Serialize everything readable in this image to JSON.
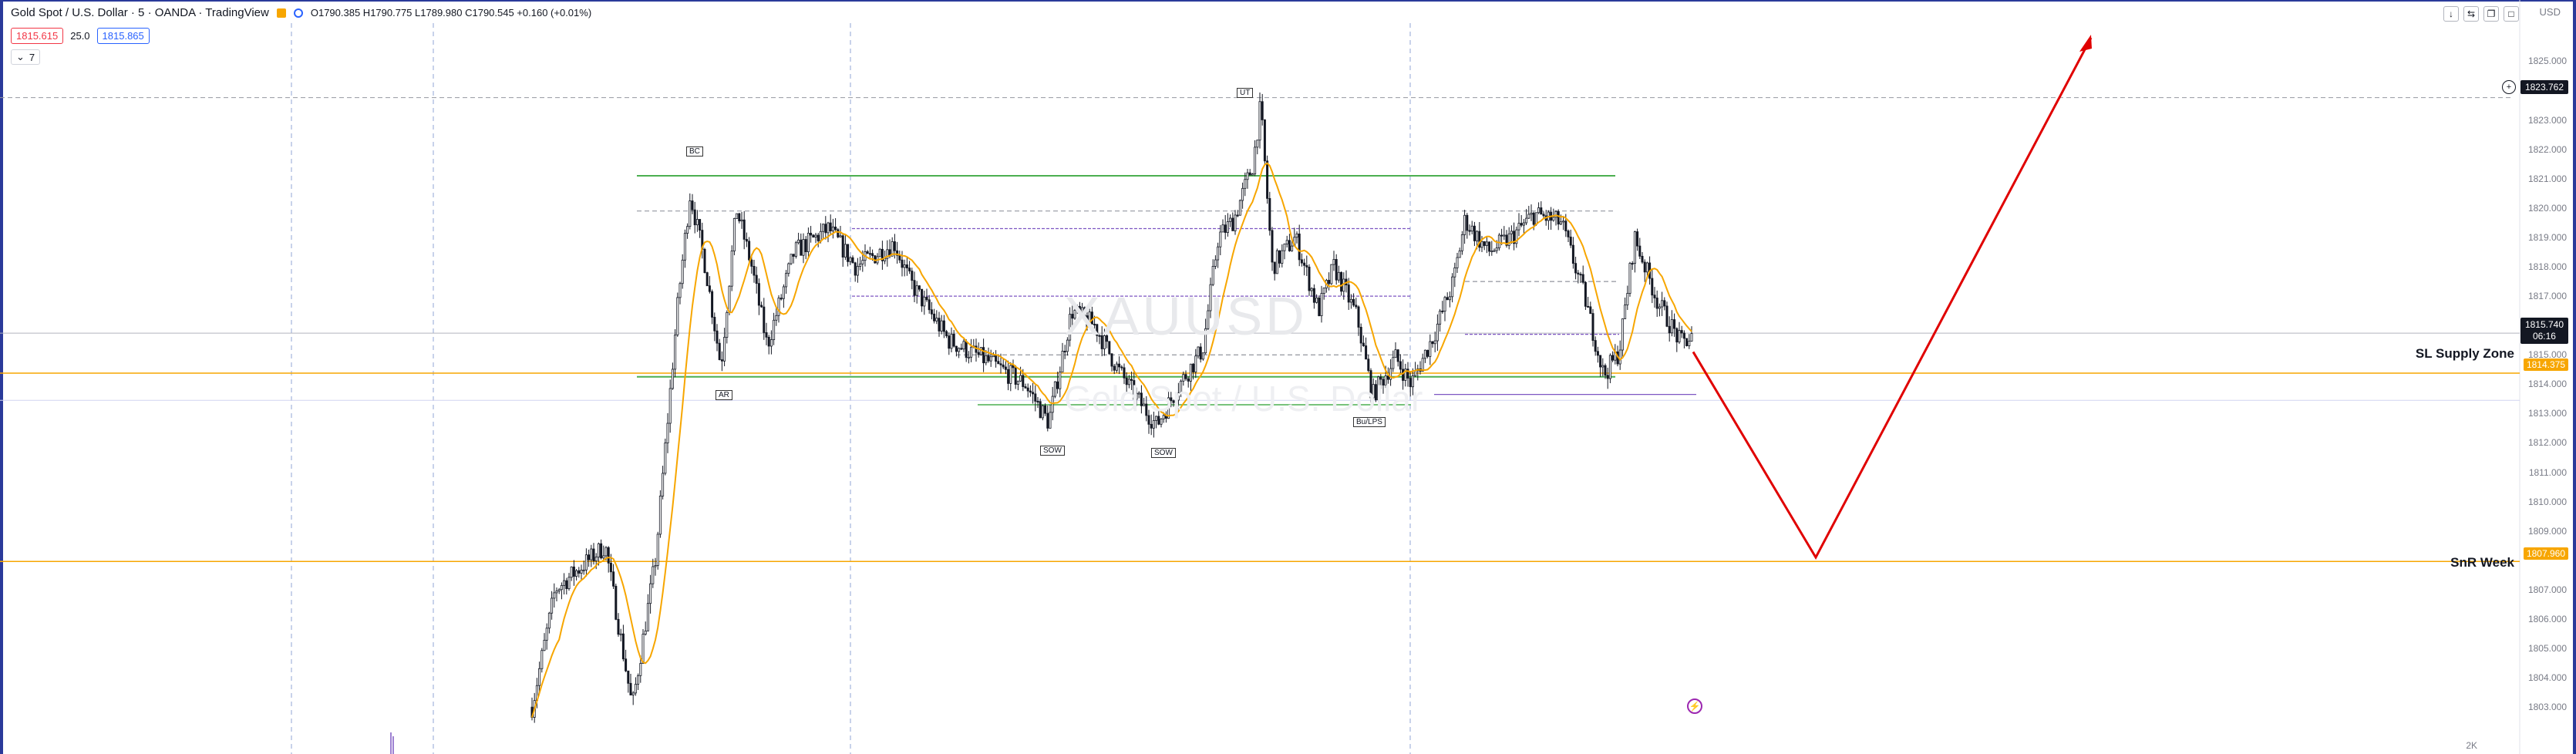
{
  "header": {
    "symbol_title": "Gold Spot / U.S. Dollar · 5 · OANDA · TradingView",
    "ohlc": "O1790.385 H1790.775 L1789.980 C1790.545 +0.160 (+0.01%)"
  },
  "quotes": {
    "sell": "1815.615",
    "spread": "25.0",
    "buy": "1815.865"
  },
  "indicators_toggle": "7",
  "window_controls": [
    "↓",
    "⇆",
    "❐",
    "□"
  ],
  "currency": "USD",
  "watermark": {
    "ticker": "XAUUSD",
    "name": "Gold Spot / U.S. Dollar"
  },
  "price_axis": {
    "labels": [
      "1825.000",
      "1823.000",
      "1822.000",
      "1821.000",
      "1820.000",
      "1819.000",
      "1818.000",
      "1817.000",
      "1815.000",
      "1814.000",
      "1813.000",
      "1812.000",
      "1811.000",
      "1810.000",
      "1809.000",
      "1807.000",
      "1806.000",
      "1805.000",
      "1804.000",
      "1803.000"
    ],
    "badges": {
      "crosshair": "1823.762",
      "current": "1815.740",
      "countdown": "06:16",
      "supply": "1814.375",
      "weekly": "1807.960"
    }
  },
  "zones": {
    "supply": "SL Supply Zone",
    "weekly": "SnR Week"
  },
  "annotations": [
    "BC",
    "AR",
    "UT",
    "SOW",
    "SOW",
    "Bu/LPS"
  ],
  "bottom_label": "2K",
  "chart_data": {
    "type": "candlestick",
    "ylim": [
      1802.4,
      1826.3
    ],
    "levels": [
      {
        "name": "SL Supply Zone",
        "price": 1814.375,
        "color": "#f7a600"
      },
      {
        "name": "SnR Week",
        "price": 1807.96,
        "color": "#f7a600"
      },
      {
        "name": "range-high",
        "price": 1821.1,
        "color": "#4caf50"
      },
      {
        "name": "range-low",
        "price": 1814.25,
        "color": "#4caf50"
      }
    ],
    "projection": [
      1815.1,
      1808.1,
      1825.8
    ],
    "colors": {
      "candle": "#131722",
      "ma": "#f7a600",
      "projection": "#e00000",
      "green": "#4caf50",
      "purple": "#7e57c2"
    }
  }
}
